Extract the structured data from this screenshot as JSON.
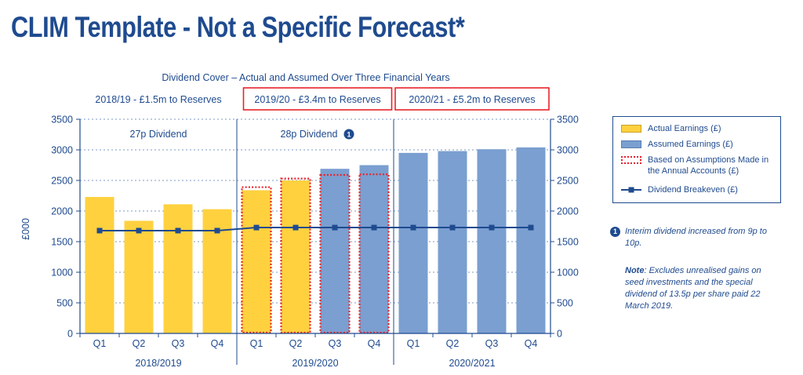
{
  "page_title": "CLIM Template - Not a Specific Forecast*",
  "chart_title": "Dividend Cover – Actual and Assumed Over Three Financial Years",
  "reserves": [
    {
      "label": "2018/19 - £1.5m to Reserves",
      "boxed": false
    },
    {
      "label": "2019/20 - £3.4m to Reserves",
      "boxed": true
    },
    {
      "label": "2020/21 - £5.2m to Reserves",
      "boxed": true
    }
  ],
  "dividend_labels": [
    {
      "text": "27p Dividend",
      "marker": ""
    },
    {
      "text": "28p Dividend",
      "marker": "1"
    }
  ],
  "legend": [
    {
      "label": "Actual Earnings (£)",
      "kind": "actual"
    },
    {
      "label": "Assumed Earnings (£)",
      "kind": "assumed"
    },
    {
      "label": "Based on Assumptions Made in the Annual Accounts (£)",
      "kind": "dotted"
    },
    {
      "label": "Dividend Breakeven (£)",
      "kind": "line"
    }
  ],
  "notes": {
    "marker": "1",
    "interim": "Interim dividend increased from 9p to 10p.",
    "note_label": "Note",
    "note_text": ": Excludes unrealised gains on seed investments and the special dividend of 13.5p per share paid 22 March 2019."
  },
  "colors": {
    "actual": "#ffd13f",
    "assumed": "#7a9fd0",
    "dotted": "#e8232a",
    "line": "#1f4b8f",
    "reserve_box": "#e8232a"
  },
  "chart_data": {
    "type": "bar",
    "title": "Dividend Cover – Actual and Assumed Over Three Financial Years",
    "ylabel": "£000",
    "ylim": [
      0,
      3500
    ],
    "yticks": [
      0,
      500,
      1000,
      1500,
      2000,
      2500,
      3000,
      3500
    ],
    "grid": true,
    "legend_position": "right",
    "categories": [
      "Q1",
      "Q2",
      "Q3",
      "Q4",
      "Q1",
      "Q2",
      "Q3",
      "Q4",
      "Q1",
      "Q2",
      "Q3",
      "Q4"
    ],
    "groups": [
      "2018/2019",
      "2019/2020",
      "2020/2021"
    ],
    "series": [
      {
        "name": "Earnings",
        "values": [
          2230,
          1840,
          2110,
          2030,
          2340,
          2500,
          2690,
          2750,
          2950,
          2980,
          3010,
          3040
        ],
        "kinds": [
          "actual",
          "actual",
          "actual",
          "actual",
          "actual",
          "actual",
          "assumed",
          "assumed",
          "assumed",
          "assumed",
          "assumed",
          "assumed"
        ]
      },
      {
        "name": "Based on Assumptions Made in the Annual Accounts (£)",
        "values": [
          null,
          null,
          null,
          null,
          2390,
          2530,
          2590,
          2600,
          null,
          null,
          null,
          null
        ]
      },
      {
        "name": "Dividend Breakeven (£)",
        "values": [
          1680,
          1680,
          1680,
          1680,
          1730,
          1730,
          1730,
          1730,
          1730,
          1730,
          1730,
          1730
        ]
      }
    ]
  }
}
